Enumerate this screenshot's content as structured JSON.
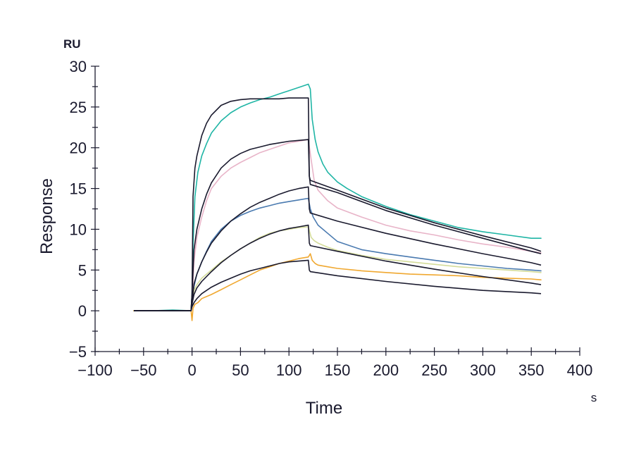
{
  "chart_data": {
    "type": "line",
    "xlabel": "Time",
    "ylabel": "Response",
    "x_unit": "s",
    "y_unit": "RU",
    "xlim": [
      -100,
      400
    ],
    "ylim": [
      -5,
      30
    ],
    "x_ticks": [
      -100,
      -50,
      0,
      50,
      100,
      150,
      200,
      250,
      300,
      350,
      400
    ],
    "y_ticks": [
      -5,
      0,
      5,
      10,
      15,
      20,
      25,
      30
    ],
    "grid": false,
    "colors": {
      "fit": "#1a1a2e",
      "teal": "#1fb5a5",
      "pink": "#e8b4c8",
      "blue": "#4a7ab0",
      "yellowgreen": "#d4dc9a",
      "orange": "#f0a830"
    },
    "series": [
      {
        "color": "teal",
        "x": [
          -60,
          -40,
          -20,
          -1,
          0,
          1,
          3,
          6,
          10,
          15,
          20,
          30,
          40,
          50,
          60,
          70,
          80,
          90,
          100,
          110,
          120,
          122,
          124,
          127,
          130,
          135,
          140,
          150,
          160,
          175,
          200,
          225,
          250,
          275,
          300,
          325,
          350,
          360
        ],
        "y": [
          0,
          0,
          0.1,
          0,
          2,
          8,
          14,
          17,
          19,
          20.5,
          21.8,
          23.3,
          24.3,
          25,
          25.5,
          25.9,
          26.2,
          26.6,
          27,
          27.4,
          27.8,
          27.2,
          23.5,
          21,
          19.5,
          18,
          17,
          15.8,
          15,
          14,
          12.8,
          11.8,
          11,
          10.2,
          9.7,
          9.3,
          8.9,
          8.9
        ]
      },
      {
        "color": "pink",
        "x": [
          -60,
          -1,
          0,
          2,
          5,
          10,
          15,
          20,
          30,
          40,
          50,
          60,
          70,
          80,
          90,
          100,
          110,
          120,
          123,
          126,
          130,
          140,
          150,
          175,
          200,
          225,
          250,
          275,
          300,
          325,
          350,
          360
        ],
        "y": [
          0,
          0,
          1,
          6,
          9,
          11.5,
          13.5,
          15,
          16.5,
          17.5,
          18.2,
          18.8,
          19.4,
          19.8,
          20.2,
          20.6,
          20.8,
          21,
          18.5,
          16,
          14.8,
          13.5,
          12.6,
          11.5,
          10.5,
          9.8,
          9.3,
          8.7,
          8.2,
          7.8,
          7.3,
          7.1
        ]
      },
      {
        "color": "blue",
        "x": [
          -60,
          -1,
          0,
          2,
          5,
          10,
          15,
          20,
          30,
          40,
          50,
          60,
          70,
          80,
          90,
          100,
          110,
          120,
          122,
          125,
          130,
          140,
          150,
          175,
          200,
          225,
          250,
          275,
          300,
          325,
          350,
          360
        ],
        "y": [
          0,
          0,
          1,
          3,
          4.5,
          6,
          7.3,
          8.5,
          10,
          11,
          11.7,
          12.2,
          12.6,
          12.9,
          13.2,
          13.4,
          13.6,
          13.8,
          12.5,
          11.5,
          10.5,
          9.5,
          8.5,
          7.5,
          7,
          6.6,
          6.2,
          5.8,
          5.5,
          5.2,
          5,
          4.9
        ]
      },
      {
        "color": "yellowgreen",
        "x": [
          -60,
          -1,
          0,
          2,
          5,
          10,
          20,
          30,
          40,
          50,
          60,
          70,
          80,
          90,
          100,
          110,
          120,
          123,
          126,
          130,
          140,
          150,
          175,
          200,
          225,
          250,
          275,
          300,
          325,
          350,
          360
        ],
        "y": [
          0,
          0,
          1,
          2.5,
          3.2,
          4,
          5,
          6,
          6.8,
          7.6,
          8.3,
          9,
          9.5,
          9.8,
          10,
          10.2,
          10.3,
          9,
          8.6,
          8.3,
          7.8,
          7.4,
          6.8,
          6.3,
          6,
          5.7,
          5.4,
          5.2,
          5,
          4.8,
          4.7
        ]
      },
      {
        "color": "orange",
        "x": [
          -60,
          -1,
          0,
          1,
          3,
          6,
          10,
          20,
          30,
          40,
          50,
          60,
          70,
          80,
          90,
          100,
          110,
          120,
          122,
          124,
          127,
          130,
          140,
          150,
          175,
          200,
          225,
          250,
          275,
          300,
          325,
          350,
          360
        ],
        "y": [
          0,
          0,
          -1.2,
          0.3,
          0.8,
          1,
          1.5,
          2,
          2.6,
          3.2,
          3.8,
          4.4,
          5,
          5.4,
          5.8,
          6.1,
          6.4,
          6.6,
          7,
          6.2,
          5.8,
          5.6,
          5.4,
          5.2,
          4.9,
          4.7,
          4.5,
          4.4,
          4.3,
          4.1,
          4,
          3.9,
          3.8
        ]
      },
      {
        "color": "fit",
        "x": [
          -60,
          -1,
          0,
          1,
          3,
          5,
          10,
          15,
          20,
          30,
          40,
          50,
          60,
          70,
          80,
          90,
          100,
          110,
          120,
          121,
          122,
          150,
          200,
          250,
          300,
          350,
          360
        ],
        "y": [
          0,
          0,
          2,
          14,
          17.5,
          19,
          21.5,
          23,
          24,
          25.2,
          25.7,
          25.9,
          26,
          26,
          26,
          26,
          26.1,
          26.1,
          26.1,
          16.5,
          16,
          14.8,
          12.6,
          10.8,
          9.2,
          7.7,
          7.3
        ]
      },
      {
        "color": "fit",
        "x": [
          -60,
          -1,
          0,
          2,
          5,
          10,
          15,
          20,
          30,
          40,
          50,
          60,
          70,
          80,
          90,
          100,
          110,
          120,
          121,
          122,
          150,
          200,
          250,
          300,
          350,
          360
        ],
        "y": [
          0,
          0,
          2,
          7.5,
          10,
          12.5,
          14.3,
          15.7,
          17.5,
          18.6,
          19.3,
          19.8,
          20.1,
          20.4,
          20.6,
          20.8,
          20.9,
          21,
          16.5,
          15.5,
          14.5,
          12.3,
          10.5,
          8.9,
          7.3,
          7
        ]
      },
      {
        "color": "fit",
        "x": [
          -60,
          -1,
          0,
          2,
          5,
          10,
          15,
          20,
          30,
          40,
          50,
          60,
          70,
          80,
          90,
          100,
          110,
          120,
          121,
          122,
          150,
          200,
          250,
          300,
          350,
          360
        ],
        "y": [
          0,
          0,
          1,
          3.3,
          4.5,
          6,
          7.2,
          8.3,
          9.8,
          11,
          11.9,
          12.7,
          13.3,
          13.8,
          14.3,
          14.7,
          15,
          15.2,
          12.5,
          12,
          11,
          9.5,
          8.2,
          7,
          5.9,
          5.6
        ]
      },
      {
        "color": "fit",
        "x": [
          -60,
          -1,
          0,
          2,
          5,
          10,
          20,
          30,
          40,
          50,
          60,
          70,
          80,
          90,
          100,
          110,
          120,
          121,
          122,
          150,
          200,
          250,
          300,
          350,
          360
        ],
        "y": [
          0,
          0,
          0.8,
          2,
          2.8,
          3.6,
          4.8,
          5.9,
          6.8,
          7.6,
          8.3,
          8.9,
          9.4,
          9.8,
          10.1,
          10.3,
          10.5,
          8.3,
          8,
          7.3,
          6.1,
          5.1,
          4.2,
          3.4,
          3.2
        ]
      },
      {
        "color": "fit",
        "x": [
          -60,
          -1,
          0,
          2,
          5,
          10,
          20,
          30,
          40,
          50,
          60,
          70,
          80,
          90,
          100,
          110,
          120,
          121,
          122,
          150,
          200,
          250,
          300,
          350,
          360
        ],
        "y": [
          0,
          0,
          0.5,
          1,
          1.5,
          2.1,
          2.9,
          3.5,
          4,
          4.5,
          4.9,
          5.2,
          5.5,
          5.8,
          6,
          6.1,
          6.2,
          5,
          4.8,
          4.3,
          3.6,
          3,
          2.5,
          2.2,
          2.1
        ]
      }
    ]
  }
}
